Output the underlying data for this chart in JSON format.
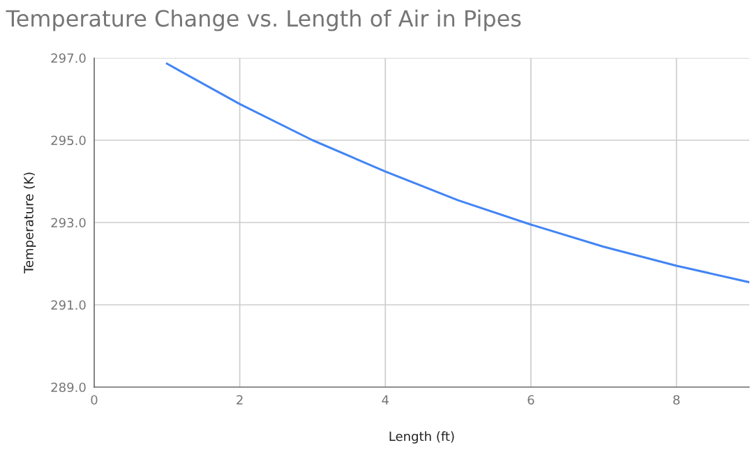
{
  "chart_data": {
    "type": "line",
    "title": "Temperature Change vs. Length of Air in Pipes",
    "xlabel": "Length (ft)",
    "ylabel": "Temperature (K)",
    "x": [
      1,
      2,
      3,
      4,
      5,
      6,
      7,
      8,
      9
    ],
    "series": [
      {
        "color": "#4285f4",
        "values": [
          296.86,
          295.88,
          295.0,
          294.24,
          293.54,
          292.95,
          292.41,
          291.95,
          291.55
        ]
      }
    ],
    "xlim": [
      0,
      9
    ],
    "xticks": [
      0,
      2,
      4,
      6,
      8
    ],
    "ylim": [
      289,
      297
    ],
    "yticks": [
      {
        "value": 289,
        "label": "289.0"
      },
      {
        "value": 291,
        "label": "291.0"
      },
      {
        "value": 293,
        "label": "293.0"
      },
      {
        "value": 295,
        "label": "295.0"
      },
      {
        "value": 297,
        "label": "297.0"
      }
    ],
    "grid": true,
    "marker": "none",
    "line_style": "solid"
  }
}
